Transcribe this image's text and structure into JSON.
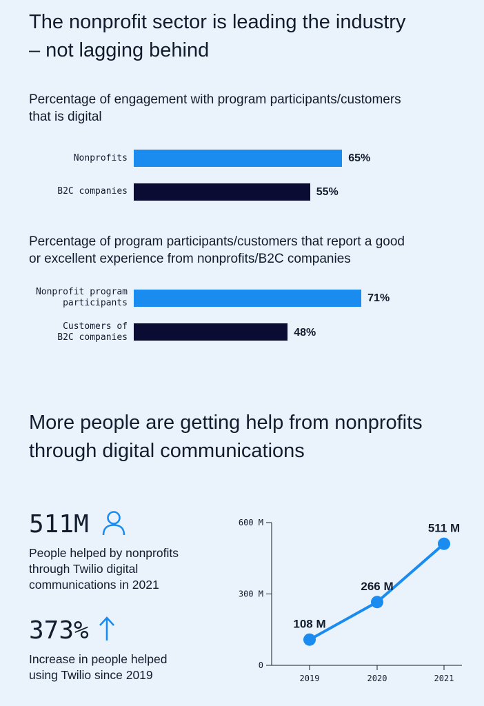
{
  "section1": {
    "title": "The nonprofit sector is leading the industry\n– not lagging behind"
  },
  "section2": {
    "title": "More people are getting help from nonprofits\nthrough digital communications"
  },
  "stats": {
    "people_helped": {
      "value": "511M",
      "description": "People helped by  nonprofits\nthrough Twilio digital\ncommunications in 2021",
      "icon": "person-icon"
    },
    "increase": {
      "value": "373%",
      "description": "Increase in people helped\nusing Twilio since 2019",
      "icon": "arrow-up-icon"
    }
  },
  "colors": {
    "nonprofit_bar": "#1a8cf0",
    "b2c_bar": "#0b0c33",
    "line": "#1a8cf0",
    "background": "#eaf2fc"
  },
  "chart_data": [
    {
      "type": "bar",
      "orientation": "horizontal",
      "title": "Percentage of engagement with program participants/customers\nthat is digital",
      "categories": [
        "Nonprofits",
        "B2C companies"
      ],
      "values": [
        65,
        55
      ],
      "value_labels": [
        "65%",
        "55%"
      ],
      "unit": "%",
      "xlim": [
        0,
        100
      ]
    },
    {
      "type": "bar",
      "orientation": "horizontal",
      "title": "Percentage of program participants/customers that report a good\nor excellent experience from nonprofits/B2C companies",
      "categories": [
        "Nonprofit program\nparticipants",
        "Customers of\nB2C companies"
      ],
      "values": [
        71,
        48
      ],
      "value_labels": [
        "71%",
        "48%"
      ],
      "unit": "%",
      "xlim": [
        0,
        100
      ]
    },
    {
      "type": "line",
      "x": [
        "2019",
        "2020",
        "2021"
      ],
      "values": [
        108,
        266,
        511
      ],
      "value_labels": [
        "108 M",
        "266 M",
        "511 M"
      ],
      "unit": "M",
      "ylim": [
        0,
        600
      ],
      "yticks": [
        0,
        300,
        600
      ],
      "ytick_labels": [
        "0",
        "300 M",
        "600 M"
      ],
      "grid": false
    }
  ]
}
